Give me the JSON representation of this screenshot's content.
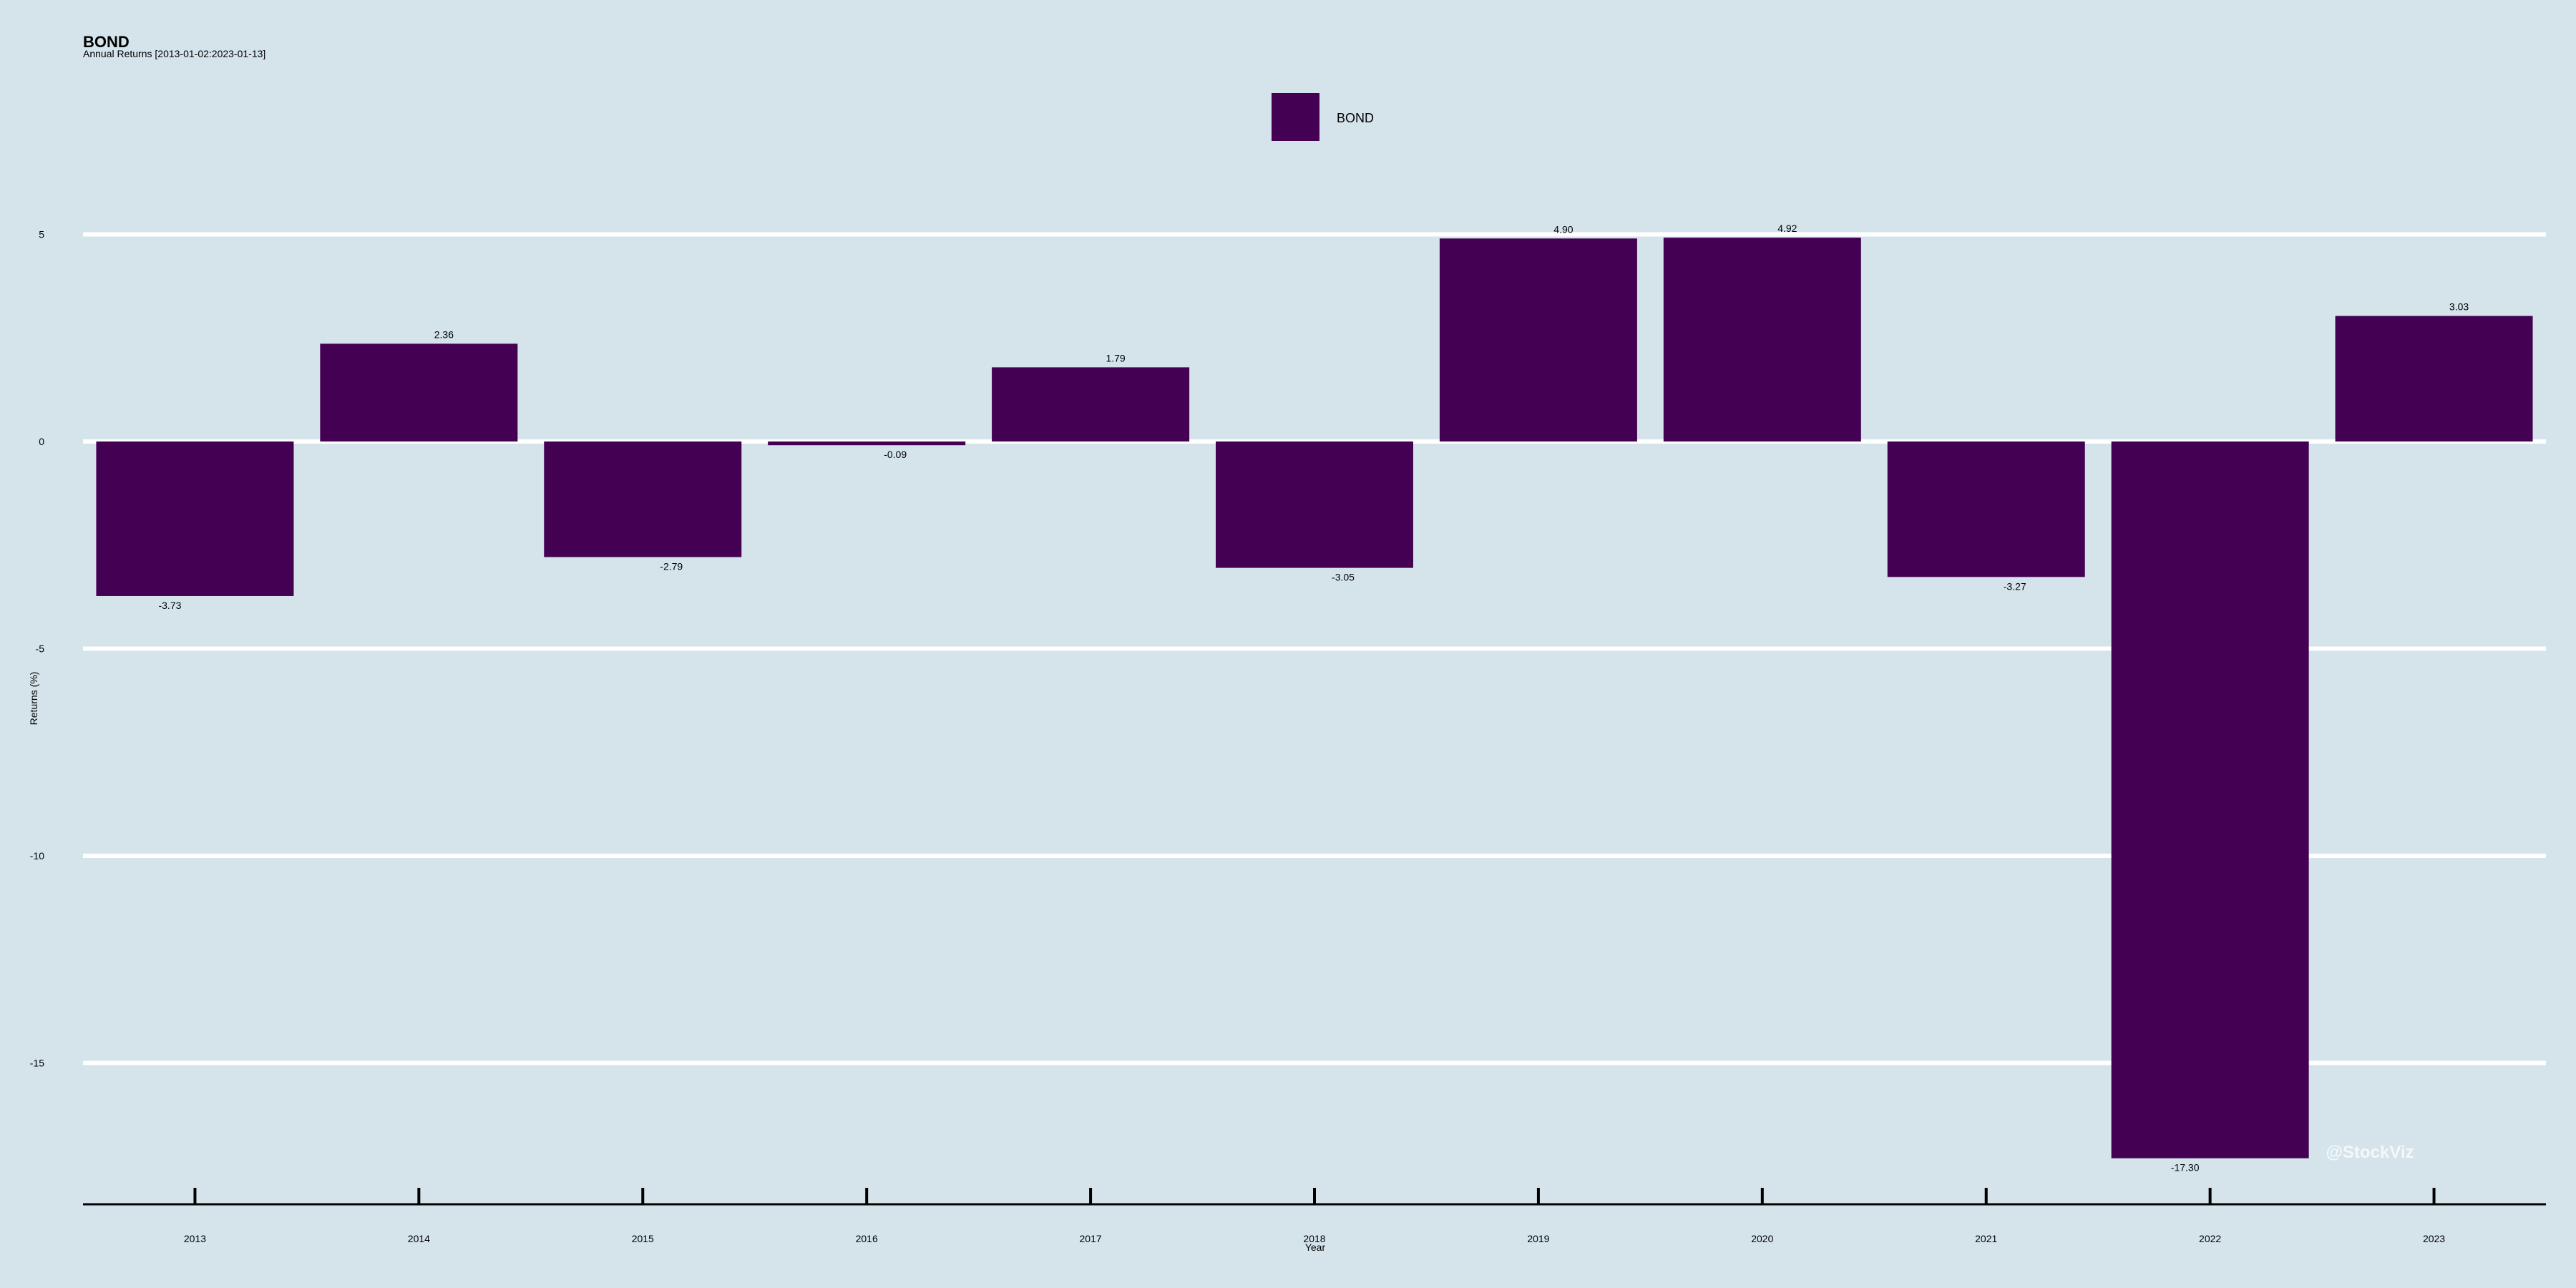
{
  "chart_data": {
    "type": "bar",
    "title": "BOND",
    "subtitle": "Annual Returns [2013-01-02:2023-01-13]",
    "xlabel": "Year",
    "ylabel": "Returns (%)",
    "categories": [
      "2013",
      "2014",
      "2015",
      "2016",
      "2017",
      "2018",
      "2019",
      "2020",
      "2021",
      "2022",
      "2023"
    ],
    "series": [
      {
        "name": "BOND",
        "color": "#440154",
        "values": [
          -3.73,
          2.36,
          -2.79,
          -0.09,
          1.79,
          -3.05,
          4.9,
          4.92,
          -3.27,
          -17.3,
          3.03
        ],
        "labels": [
          "-3.73",
          "2.36",
          "-2.79",
          "-0.09",
          "1.79",
          "-3.05",
          "4.90",
          "4.92",
          "-3.27",
          "-17.30",
          "3.03"
        ]
      }
    ],
    "y_ticks": [
      5,
      0,
      -5,
      -10,
      -15
    ],
    "y_tick_labels": [
      "5",
      "0",
      "-5",
      "-10",
      "-15"
    ],
    "ylim": [
      -18.3,
      6.5
    ],
    "grid": true,
    "grid_color": "#ffffff",
    "background": "#d5e4eb",
    "legend_position": "top-center"
  },
  "watermark": "@StockViz"
}
